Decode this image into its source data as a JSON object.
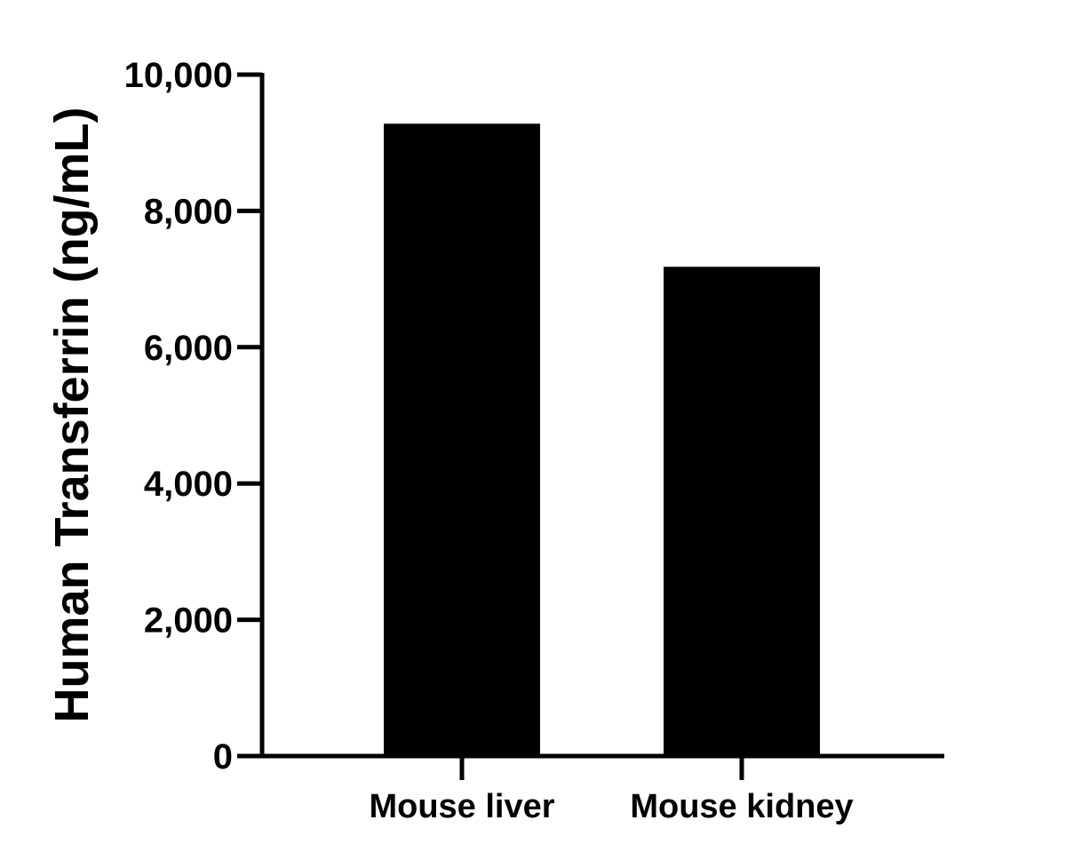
{
  "chart_data": {
    "type": "bar",
    "title": "",
    "xlabel": "",
    "ylabel": "Human Transferrin (ng/mL)",
    "ylim": [
      0,
      10000
    ],
    "yticks": [
      0,
      2000,
      4000,
      6000,
      8000,
      10000
    ],
    "ytick_labels": [
      "0",
      "2,000",
      "4,000",
      "6,000",
      "8,000",
      "10,000"
    ],
    "categories": [
      "Mouse liver",
      "Mouse kidney"
    ],
    "values": [
      9280,
      7180
    ],
    "bar_color": "#000000",
    "grid": false,
    "legend": "none"
  }
}
